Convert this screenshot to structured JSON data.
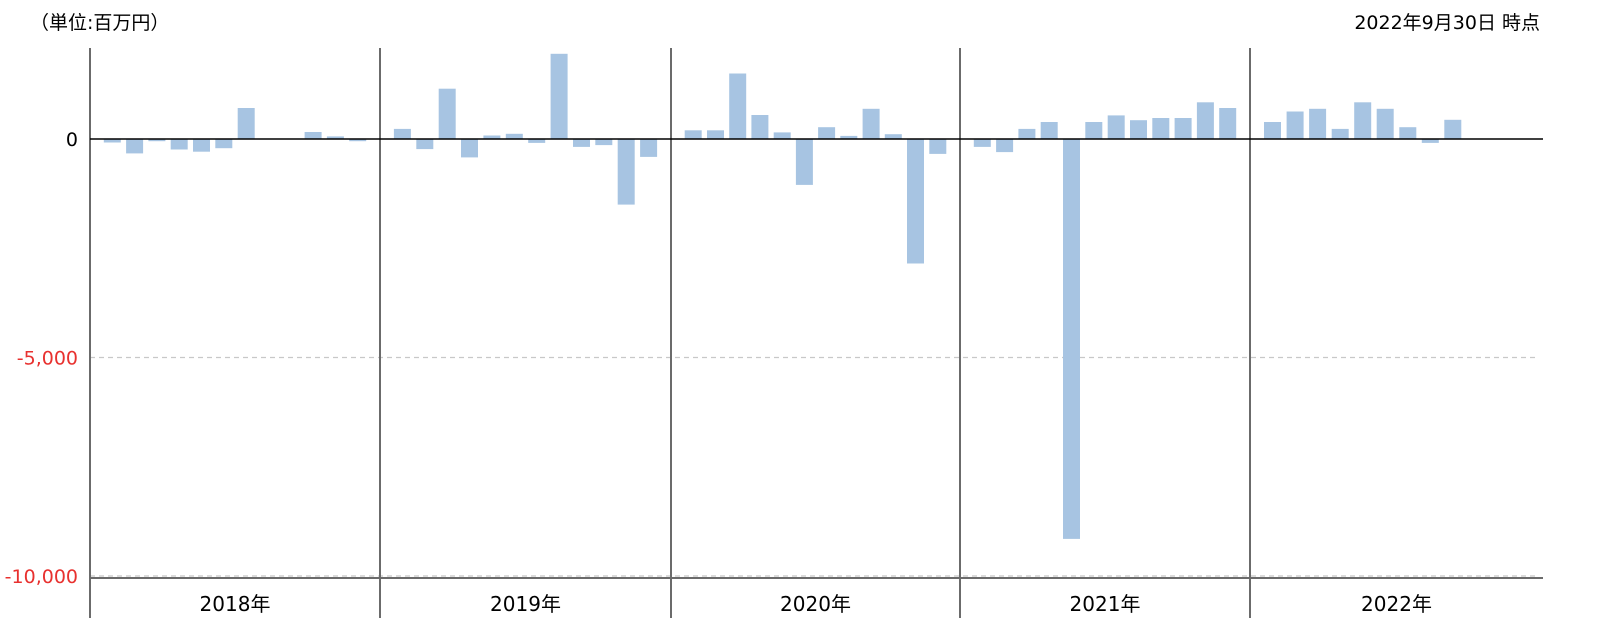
{
  "header": {
    "unit_label": "（単位:百万円）",
    "date_label": "2022年9月30日 時点"
  },
  "colors": {
    "bar": "#a7c4e2",
    "negative_tick": "#e8312f",
    "axis": "#000000",
    "divider": "#6b6b6b",
    "grid": "#c8c8c8"
  },
  "chart_data": {
    "type": "bar",
    "title": "",
    "xlabel": "",
    "ylabel": "",
    "ylim": [
      -10000,
      2000
    ],
    "yticks": [
      {
        "value": 0,
        "label": "0",
        "negative": false
      },
      {
        "value": -5000,
        "label": "-5,000",
        "negative": true
      },
      {
        "value": -10000,
        "label": "-10,000",
        "negative": true
      }
    ],
    "grid": "horizontal-dashed",
    "year_labels": [
      "2018年",
      "2019年",
      "2020年",
      "2021年",
      "2022年"
    ],
    "months_per_year": 12,
    "values": [
      [
        -80,
        -330,
        -50,
        -240,
        -290,
        -210,
        710,
        null,
        null,
        160,
        60,
        -50
      ],
      [
        230,
        -230,
        1150,
        -420,
        80,
        120,
        -90,
        1950,
        -180,
        -140,
        -1500,
        -410
      ],
      [
        200,
        200,
        1500,
        550,
        150,
        -1050,
        270,
        70,
        690,
        110,
        -2850,
        -340
      ],
      [
        -180,
        -300,
        230,
        390,
        -9150,
        390,
        540,
        430,
        480,
        480,
        840,
        710
      ],
      [
        390,
        630,
        690,
        230,
        840,
        690,
        270,
        -90,
        440,
        null,
        null,
        null
      ]
    ]
  }
}
